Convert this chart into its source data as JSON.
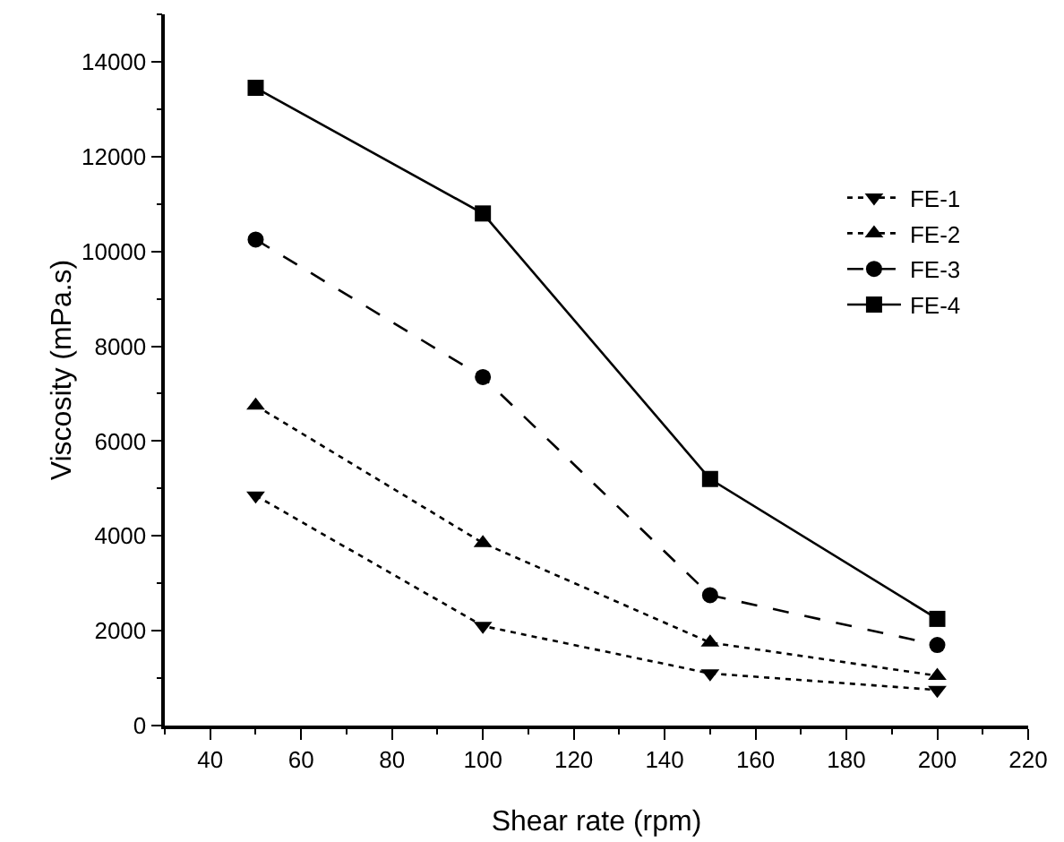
{
  "chart_data": {
    "type": "line",
    "xlabel": "Shear rate (rpm)",
    "ylabel": "Viscosity (mPa.s)",
    "x": [
      50,
      100,
      150,
      200
    ],
    "series": [
      {
        "name": "FE-1",
        "color": "#000000",
        "marker": "triangle-down",
        "line_style": "dotted",
        "values": [
          4850,
          2100,
          1100,
          750
        ]
      },
      {
        "name": "FE-2",
        "color": "#000000",
        "marker": "triangle",
        "line_style": "dotted",
        "values": [
          6750,
          3850,
          1750,
          1050
        ]
      },
      {
        "name": "FE-3",
        "color": "#000000",
        "marker": "circle",
        "line_style": "dashed",
        "values": [
          10250,
          7350,
          2750,
          1700
        ]
      },
      {
        "name": "FE-4",
        "color": "#000000",
        "marker": "square",
        "line_style": "solid",
        "values": [
          13450,
          10800,
          5200,
          2250
        ]
      }
    ],
    "xlim": [
      30,
      220
    ],
    "xticks": [
      40,
      60,
      80,
      100,
      120,
      140,
      160,
      180,
      200,
      220
    ],
    "ylim": [
      0,
      15000
    ],
    "yticks": [
      0,
      2000,
      4000,
      6000,
      8000,
      10000,
      12000,
      14000
    ],
    "grid": false,
    "legend": "top right"
  }
}
